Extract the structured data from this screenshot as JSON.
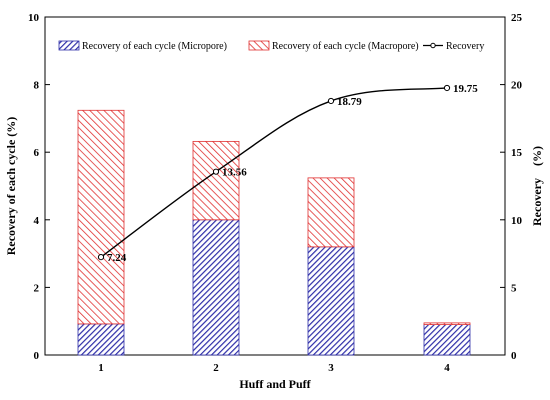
{
  "chart_data": {
    "type": "bar",
    "categories": [
      "1",
      "2",
      "3",
      "4"
    ],
    "xlabel": "Huff and Puff",
    "ylabel_left": "Recovery of each cycle (%)",
    "ylabel_right": "Recovery　(%)",
    "ylim_left": [
      0,
      10
    ],
    "yticks_left": [
      0,
      2,
      4,
      6,
      8,
      10
    ],
    "ylim_right": [
      0,
      25
    ],
    "yticks_right": [
      0,
      5,
      10,
      15,
      20,
      25
    ],
    "grid": false,
    "legend_position": "top",
    "series": [
      {
        "name": "Recovery of each cycle (Micropore)",
        "type": "bar-stacked",
        "axis": "left",
        "values": [
          0.92,
          4.0,
          3.2,
          0.9
        ],
        "color": "#2e2ea8",
        "pattern": "hatch-blue"
      },
      {
        "name": "Recovery of each cycle (Macropore)",
        "type": "bar-stacked",
        "axis": "left",
        "values": [
          6.32,
          2.32,
          2.04,
          0.05
        ],
        "color": "#e03030",
        "pattern": "hatch-red"
      },
      {
        "name": "Recovery",
        "type": "line",
        "axis": "right",
        "values": [
          7.24,
          13.56,
          18.79,
          19.75
        ],
        "labels": [
          "7.24",
          "13.56",
          "18.79",
          "19.75"
        ],
        "color": "#000000"
      }
    ]
  }
}
